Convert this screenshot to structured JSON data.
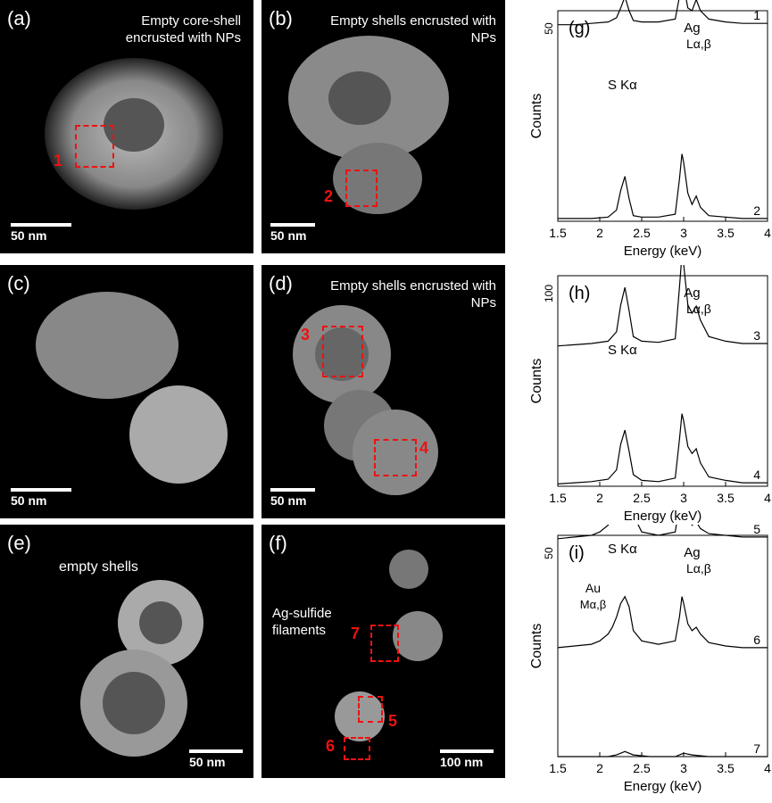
{
  "panels": {
    "a": {
      "label": "(a)",
      "annotation": "Empty core-shell encrusted with NPs",
      "scale": "50 nm",
      "roi": [
        "1"
      ]
    },
    "b": {
      "label": "(b)",
      "annotation": "Empty shells encrusted with NPs",
      "scale": "50 nm",
      "roi": [
        "2"
      ]
    },
    "c": {
      "label": "(c)",
      "scale": "50 nm"
    },
    "d": {
      "label": "(d)",
      "annotation": "Empty shells encrusted with NPs",
      "scale": "50 nm",
      "roi": [
        "3",
        "4"
      ]
    },
    "e": {
      "label": "(e)",
      "annotation": "empty shells",
      "scale": "50 nm"
    },
    "f": {
      "label": "(f)",
      "annotation": "Ag-sulfide filaments",
      "scale": "100 nm",
      "roi": [
        "7",
        "5",
        "6"
      ]
    }
  },
  "chart_data": [
    {
      "type": "line",
      "panel": "(g)",
      "xlabel": "Energy (keV)",
      "ylabel": "Counts",
      "xlim": [
        1.5,
        4
      ],
      "xticks": [
        "1.5",
        "2",
        "2.5",
        "3",
        "3.5",
        "4"
      ],
      "yscale_label": "50",
      "peak_labels": {
        "s": "S Kα",
        "ag1": "Ag",
        "ag2": "Lα,β"
      },
      "series": [
        {
          "name": "1",
          "x": [
            1.5,
            1.7,
            1.9,
            2.1,
            2.2,
            2.25,
            2.3,
            2.35,
            2.4,
            2.5,
            2.7,
            2.9,
            2.95,
            2.98,
            3.0,
            3.05,
            3.1,
            3.15,
            3.2,
            3.3,
            3.5,
            3.7,
            4.0
          ],
          "y": [
            20,
            20,
            21,
            22,
            25,
            32,
            40,
            30,
            23,
            22,
            22,
            24,
            40,
            52,
            48,
            32,
            30,
            38,
            30,
            24,
            22,
            21,
            21
          ]
        },
        {
          "name": "2",
          "x": [
            1.5,
            1.7,
            1.9,
            2.1,
            2.2,
            2.25,
            2.3,
            2.35,
            2.4,
            2.5,
            2.7,
            2.9,
            2.95,
            2.98,
            3.0,
            3.05,
            3.1,
            3.15,
            3.2,
            3.3,
            3.5,
            3.7,
            4.0
          ],
          "y": [
            2,
            2,
            2,
            3,
            8,
            22,
            32,
            16,
            4,
            3,
            3,
            5,
            30,
            48,
            42,
            20,
            12,
            18,
            10,
            4,
            3,
            2,
            2
          ]
        }
      ]
    },
    {
      "type": "line",
      "panel": "(h)",
      "xlabel": "Energy (keV)",
      "ylabel": "Counts",
      "xlim": [
        1.5,
        4
      ],
      "xticks": [
        "1.5",
        "2",
        "2.5",
        "3",
        "3.5",
        "4"
      ],
      "yscale_label": "100",
      "peak_labels": {
        "s": "S Kα",
        "ag1": "Ag",
        "ag2": "Lα,β"
      },
      "series": [
        {
          "name": "3",
          "x": [
            1.5,
            1.7,
            1.9,
            2.1,
            2.2,
            2.25,
            2.3,
            2.35,
            2.4,
            2.5,
            2.7,
            2.9,
            2.95,
            2.98,
            3.0,
            3.05,
            3.1,
            3.15,
            3.2,
            3.3,
            3.5,
            3.7,
            4.0
          ],
          "y": [
            10,
            11,
            12,
            14,
            22,
            45,
            60,
            40,
            18,
            14,
            13,
            16,
            60,
            88,
            80,
            45,
            38,
            44,
            32,
            18,
            14,
            12,
            12
          ]
        },
        {
          "name": "4",
          "x": [
            1.5,
            1.7,
            1.9,
            2.1,
            2.2,
            2.25,
            2.3,
            2.35,
            2.4,
            2.5,
            2.7,
            2.9,
            2.95,
            2.98,
            3.0,
            3.05,
            3.1,
            3.15,
            3.2,
            3.3,
            3.5,
            3.7,
            4.0
          ],
          "y": [
            2,
            3,
            4,
            6,
            14,
            36,
            48,
            30,
            10,
            5,
            4,
            7,
            40,
            62,
            56,
            34,
            28,
            32,
            20,
            8,
            5,
            3,
            3
          ]
        }
      ]
    },
    {
      "type": "line",
      "panel": "(i)",
      "xlabel": "Energy (keV)",
      "ylabel": "Counts",
      "xlim": [
        1.5,
        4
      ],
      "xticks": [
        "1.5",
        "2",
        "2.5",
        "3",
        "3.5",
        "4"
      ],
      "yscale_label": "50",
      "peak_labels": {
        "s": "S Kα",
        "ag1": "Ag",
        "ag2": "Lα,β",
        "au1": "Au",
        "au2": "Mα,β"
      },
      "series": [
        {
          "name": "5",
          "x": [
            1.5,
            1.7,
            1.9,
            2.0,
            2.1,
            2.15,
            2.2,
            2.25,
            2.3,
            2.35,
            2.4,
            2.5,
            2.7,
            2.9,
            2.95,
            2.98,
            3.0,
            3.05,
            3.1,
            3.15,
            3.2,
            3.3,
            3.5,
            3.7,
            4.0
          ],
          "y": [
            16,
            17,
            18,
            20,
            24,
            30,
            38,
            56,
            64,
            52,
            30,
            20,
            18,
            20,
            36,
            50,
            46,
            30,
            24,
            26,
            22,
            19,
            18,
            17,
            17
          ]
        },
        {
          "name": "6",
          "x": [
            1.5,
            1.7,
            1.9,
            2.0,
            2.1,
            2.15,
            2.2,
            2.25,
            2.3,
            2.35,
            2.4,
            2.5,
            2.7,
            2.9,
            2.95,
            2.98,
            3.0,
            3.05,
            3.1,
            3.15,
            3.2,
            3.3,
            3.5,
            3.7,
            4.0
          ],
          "y": [
            4,
            5,
            6,
            8,
            12,
            16,
            22,
            30,
            34,
            28,
            14,
            8,
            6,
            8,
            22,
            34,
            30,
            18,
            14,
            16,
            12,
            7,
            5,
            4,
            4
          ]
        },
        {
          "name": "7",
          "x": [
            1.5,
            1.7,
            1.9,
            2.1,
            2.2,
            2.3,
            2.4,
            2.6,
            2.9,
            3.0,
            3.1,
            3.3,
            3.6,
            4.0
          ],
          "y": [
            0,
            0,
            0,
            0,
            1,
            3,
            1,
            0,
            0,
            2,
            1,
            0,
            0,
            0
          ]
        }
      ]
    }
  ]
}
